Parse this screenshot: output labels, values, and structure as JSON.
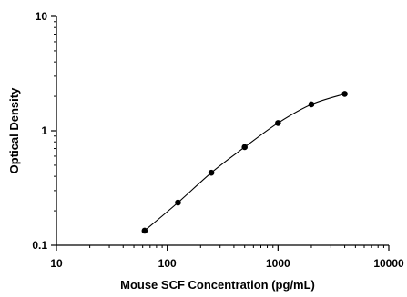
{
  "chart_data": {
    "type": "scatter",
    "title": "",
    "xlabel": "Mouse SCF Concentration (pg/mL)",
    "ylabel": "Optical Density",
    "x_scale": "log",
    "y_scale": "log",
    "xlim": [
      10,
      10000
    ],
    "ylim": [
      0.1,
      10
    ],
    "x_ticks": [
      "10",
      "100",
      "1000",
      "10000"
    ],
    "y_ticks": [
      "0.1",
      "1",
      "10"
    ],
    "grid": false,
    "legend": "none",
    "series": [
      {
        "marker": "filled-circle",
        "fit_line": "smooth curve",
        "points": [
          {
            "x": 62.5,
            "y": 0.134
          },
          {
            "x": 125,
            "y": 0.236
          },
          {
            "x": 250,
            "y": 0.43
          },
          {
            "x": 500,
            "y": 0.72
          },
          {
            "x": 1000,
            "y": 1.17
          },
          {
            "x": 2000,
            "y": 1.7
          },
          {
            "x": 4000,
            "y": 2.1
          }
        ]
      }
    ],
    "colors": {
      "axis": "#000000",
      "points": "#000000",
      "curve": "#000000"
    }
  }
}
